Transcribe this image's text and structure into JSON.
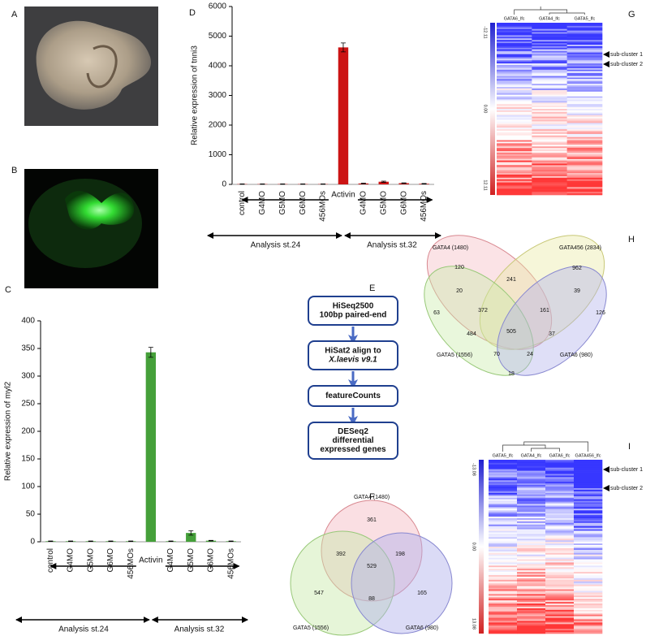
{
  "panel_labels": {
    "a": "A",
    "b": "B",
    "c": "C",
    "d": "D",
    "e": "E",
    "f": "F",
    "g": "G",
    "h": "H",
    "i": "I"
  },
  "chart_data": [
    {
      "type": "bar",
      "y_label": "Relative expression of myl2",
      "categories": [
        "control",
        "G4MO",
        "G5MO",
        "G6MO",
        "456MOs",
        "Activin",
        "G4MO",
        "G5MO",
        "G6MO",
        "456MOs"
      ],
      "values": [
        1,
        1,
        1,
        1,
        1,
        343,
        1,
        16,
        2,
        1
      ],
      "errors": [
        0.5,
        0.5,
        0.5,
        0.5,
        0.5,
        9,
        0.5,
        4,
        0.5,
        0.5
      ],
      "color": "#45a03a",
      "ylim": [
        0,
        400
      ],
      "yticks": [
        0,
        50,
        100,
        150,
        200,
        250,
        300,
        350,
        400
      ],
      "groups": [
        "Analysis st.24",
        "Analysis st.32"
      ]
    },
    {
      "type": "bar",
      "y_label": "Relative expression of tnni3",
      "categories": [
        "control",
        "G4MO",
        "G5MO",
        "G6MO",
        "456MOs",
        "Activin",
        "G4MO",
        "G5MO",
        "G6MO",
        "456MOs"
      ],
      "values": [
        10,
        10,
        10,
        10,
        10,
        4620,
        30,
        90,
        40,
        20
      ],
      "errors": [
        5,
        5,
        5,
        5,
        5,
        150,
        10,
        20,
        10,
        10
      ],
      "color": "#cc1414",
      "ylim": [
        0,
        6000
      ],
      "yticks": [
        0,
        1000,
        2000,
        3000,
        4000,
        5000,
        6000
      ],
      "groups": [
        "Analysis st.24",
        "Analysis st.32"
      ]
    }
  ],
  "flowchart": {
    "nodes": [
      {
        "lines": [
          "HiSeq2500",
          "100bp paired-end"
        ]
      },
      {
        "lines": [
          "HiSat2 align to",
          "X.laevis v9.1"
        ]
      },
      {
        "lines": [
          "featureCounts"
        ]
      },
      {
        "lines": [
          "DESeq2",
          "differential",
          "expressed genes"
        ]
      }
    ]
  },
  "venn_f": {
    "sets": [
      "GATA4 (1480)",
      "GATA5 (1556)",
      "GATA6 (980)"
    ],
    "regions": [
      361,
      392,
      198,
      529,
      547,
      88,
      165
    ]
  },
  "venn_h": {
    "sets": [
      "GATA4 (1480)",
      "GATA456 (2834)",
      "GATA5 (1556)",
      "GATA6 (980)"
    ],
    "regions": [
      120,
      962,
      241,
      20,
      39,
      372,
      161,
      63,
      126,
      505,
      484,
      37,
      70,
      24,
      18
    ]
  },
  "heatmap_g": {
    "columns": [
      "GATA6_lfc",
      "GATA4_lfc",
      "GATA5_lfc"
    ],
    "scale": [
      "-12.11",
      "0.00",
      "12.11"
    ],
    "annotations": [
      "sub-cluster 1",
      "sub-cluster 2"
    ]
  },
  "heatmap_i": {
    "columns": [
      "GATA5_lfc",
      "GATA4_lfc",
      "GATA6_lfc",
      "GATA456_lfc"
    ],
    "scale": [
      "-13.08",
      "0.00",
      "13.08"
    ],
    "annotations": [
      "sub-cluster 1",
      "sub-cluster 2"
    ]
  }
}
